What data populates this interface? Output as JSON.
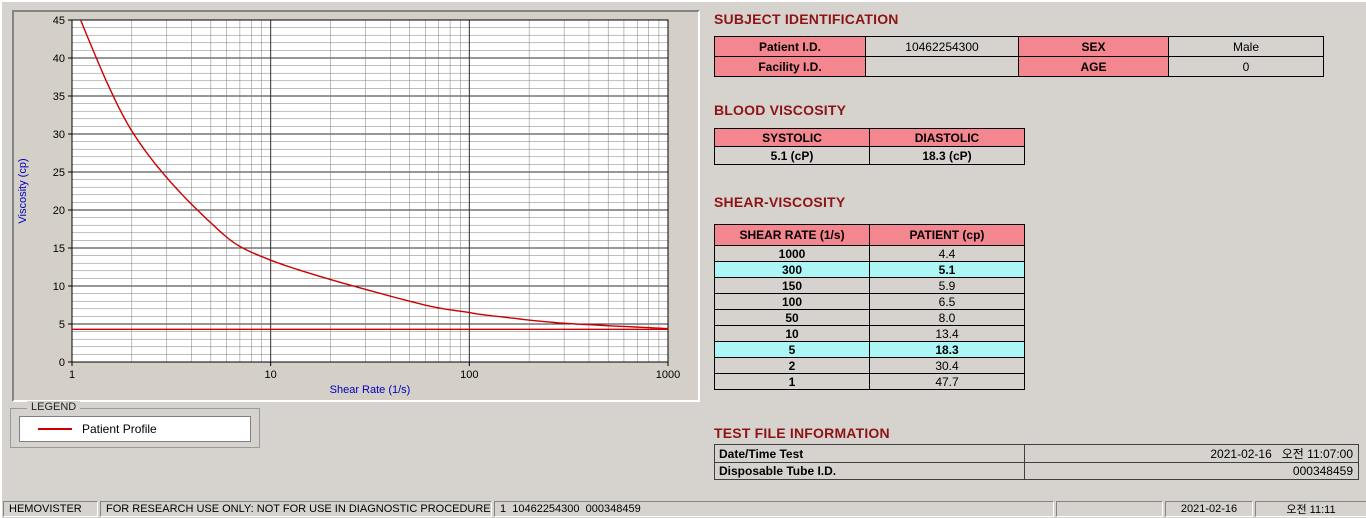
{
  "colors": {
    "background": "#d6d3ce",
    "heading": "#8e1315",
    "table_pink": "#f3868e",
    "highlight_cyan": "#adf6f6",
    "axis_blue": "#0000bb",
    "curve_red": "#cc0000"
  },
  "headings": {
    "subject": "SUBJECT IDENTIFICATION",
    "blood": "BLOOD VISCOSITY",
    "shear": "SHEAR-VISCOSITY",
    "test": "TEST FILE INFORMATION"
  },
  "subject_table": {
    "rows": [
      [
        "Patient I.D.",
        "10462254300",
        "SEX",
        "Male"
      ],
      [
        "Facility I.D.",
        "",
        "AGE",
        "0"
      ]
    ]
  },
  "blood_table": {
    "headers": [
      "SYSTOLIC",
      "DIASTOLIC"
    ],
    "values": [
      "5.1 (cP)",
      "18.3 (cP)"
    ]
  },
  "shear_table": {
    "headers": [
      "SHEAR RATE (1/s)",
      "PATIENT (cp)"
    ],
    "rows": [
      {
        "rate": "1000",
        "patient": "4.4",
        "highlight": false
      },
      {
        "rate": "300",
        "patient": "5.1",
        "highlight": true
      },
      {
        "rate": "150",
        "patient": "5.9",
        "highlight": false
      },
      {
        "rate": "100",
        "patient": "6.5",
        "highlight": false
      },
      {
        "rate": "50",
        "patient": "8.0",
        "highlight": false
      },
      {
        "rate": "10",
        "patient": "13.4",
        "highlight": false
      },
      {
        "rate": "5",
        "patient": "18.3",
        "highlight": true
      },
      {
        "rate": "2",
        "patient": "30.4",
        "highlight": false
      },
      {
        "rate": "1",
        "patient": "47.7",
        "highlight": false
      }
    ]
  },
  "test_info": {
    "rows": [
      {
        "label": "Date/Time Test",
        "value": "2021-02-16   오전 11:07:00"
      },
      {
        "label": "Disposable Tube I.D.",
        "value": "000348459"
      }
    ]
  },
  "legend": {
    "title": "LEGEND",
    "entry": "Patient Profile"
  },
  "status_bar": {
    "items": [
      "HEMOVISTER",
      "FOR RESEARCH USE ONLY: NOT FOR USE IN DIAGNOSTIC PROCEDURES",
      "1  10462254300  000348459",
      "",
      "2021-02-16",
      "오전 11:11"
    ]
  },
  "chart_data": {
    "type": "line",
    "title": "",
    "xlabel": "Shear Rate (1/s)",
    "ylabel": "Viscosity (cp)",
    "x_scale": "log",
    "xlim": [
      1,
      1000
    ],
    "ylim": [
      0,
      45
    ],
    "y_major_step": 5,
    "y_minor_step": 1,
    "x_ticks": [
      1,
      10,
      100,
      1000
    ],
    "grid": "on",
    "legend_position": "below-left",
    "series": [
      {
        "name": "Patient Profile",
        "color": "#cc0000",
        "points": [
          [
            1,
            47.7
          ],
          [
            2,
            30.4
          ],
          [
            5,
            18.3
          ],
          [
            10,
            13.4
          ],
          [
            50,
            8.0
          ],
          [
            100,
            6.5
          ],
          [
            150,
            5.9
          ],
          [
            300,
            5.1
          ],
          [
            1000,
            4.4
          ]
        ]
      }
    ],
    "baseline": {
      "value": 4.3,
      "color": "#cc0000"
    }
  }
}
